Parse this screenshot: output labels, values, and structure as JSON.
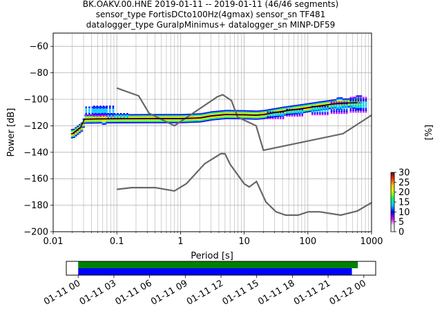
{
  "title_lines": [
    "BK.OAKV.00.HNE   2019-01-11 -- 2019-01-11  (46/46 segments)",
    "sensor_type FortisDCto100Hz(4gmax) sensor_sn TF481",
    "datalogger_type GuralpMinimus+ datalogger_sn MINP-DF59"
  ],
  "chart_data": [
    {
      "type": "heatmap",
      "xlabel": "Period [s]",
      "ylabel": "Power [dB]",
      "xscale": "log",
      "xlim": [
        0.01,
        1000
      ],
      "ylim": [
        -200,
        -50
      ],
      "grid": true,
      "xticks": [
        {
          "v": 0.01,
          "label": "0.01"
        },
        {
          "v": 0.1,
          "label": "0.1"
        },
        {
          "v": 1,
          "label": "1"
        },
        {
          "v": 10,
          "label": "10"
        },
        {
          "v": 100,
          "label": "100"
        },
        {
          "v": 1000,
          "label": "1000"
        }
      ],
      "yticks": [
        {
          "v": -60,
          "label": "−60"
        },
        {
          "v": -80,
          "label": "−80"
        },
        {
          "v": -100,
          "label": "−100"
        },
        {
          "v": -120,
          "label": "−120"
        },
        {
          "v": -140,
          "label": "−140"
        },
        {
          "v": -160,
          "label": "−160"
        },
        {
          "v": -180,
          "label": "−180"
        },
        {
          "v": -200,
          "label": "−200"
        }
      ],
      "noise_models": [
        {
          "name": "NHNM",
          "color": "#666666",
          "points": [
            [
              0.1,
              -91.5
            ],
            [
              0.22,
              -97.4
            ],
            [
              0.32,
              -110.5
            ],
            [
              0.8,
              -120
            ],
            [
              3.8,
              -98
            ],
            [
              4.6,
              -96.5
            ],
            [
              6.3,
              -101
            ],
            [
              7.9,
              -113.5
            ],
            [
              15.4,
              -120
            ],
            [
              20,
              -138.5
            ],
            [
              354.8,
              -126
            ],
            [
              1000,
              -112
            ]
          ]
        },
        {
          "name": "NLNM",
          "color": "#666666",
          "points": [
            [
              0.1,
              -168
            ],
            [
              0.17,
              -166.7
            ],
            [
              0.4,
              -166.7
            ],
            [
              0.8,
              -169.2
            ],
            [
              1.24,
              -163.7
            ],
            [
              2.4,
              -148.6
            ],
            [
              4.3,
              -141.1
            ],
            [
              5,
              -141.1
            ],
            [
              6,
              -149
            ],
            [
              10,
              -163.8
            ],
            [
              12,
              -166.2
            ],
            [
              15.6,
              -162.1
            ],
            [
              21.9,
              -177.5
            ],
            [
              31.6,
              -185
            ],
            [
              45,
              -187.5
            ],
            [
              70,
              -187.5
            ],
            [
              101,
              -185
            ],
            [
              154,
              -185
            ],
            [
              328,
              -187.5
            ],
            [
              600,
              -184.4
            ],
            [
              1000,
              -178
            ]
          ]
        }
      ],
      "median": [
        [
          0.02,
          -126
        ],
        [
          0.027,
          -121
        ],
        [
          0.031,
          -115
        ],
        [
          0.05,
          -114.8
        ],
        [
          0.1,
          -114.7
        ],
        [
          0.3,
          -114.6
        ],
        [
          1,
          -114.6
        ],
        [
          2,
          -114
        ],
        [
          3,
          -112.5
        ],
        [
          5,
          -111.5
        ],
        [
          10,
          -111.7
        ],
        [
          15,
          -112
        ],
        [
          20,
          -111.5
        ],
        [
          40,
          -109
        ],
        [
          80,
          -107
        ],
        [
          150,
          -105
        ],
        [
          300,
          -103
        ],
        [
          600,
          -102.5
        ]
      ],
      "psd_bands": [
        {
          "p": 0.045,
          "lo": -111.5,
          "hi": -104.5
        },
        {
          "p": 0.06,
          "lo": -112,
          "hi": -104
        },
        {
          "p": 0.1,
          "lo": -114,
          "hi": -110
        },
        {
          "p": 30,
          "lo": -114,
          "hi": -109
        },
        {
          "p": 60,
          "lo": -112,
          "hi": -106
        },
        {
          "p": 150,
          "lo": -111,
          "hi": -104
        },
        {
          "p": 300,
          "lo": -110,
          "hi": -101
        },
        {
          "p": 600,
          "lo": -109,
          "hi": -98
        }
      ]
    },
    {
      "type": "colorbar",
      "label": "[%]",
      "range": [
        0,
        30
      ],
      "ticks": [
        {
          "v": 0,
          "label": "0"
        },
        {
          "v": 5,
          "label": "5"
        },
        {
          "v": 10,
          "label": "10"
        },
        {
          "v": 15,
          "label": "15"
        },
        {
          "v": 20,
          "label": "20"
        },
        {
          "v": 25,
          "label": "25"
        },
        {
          "v": 30,
          "label": "30"
        }
      ],
      "colors": [
        "#ffffff",
        "#e6e6e6",
        "#cc00ff",
        "#0000ff",
        "#00ccff",
        "#00ff66",
        "#ccff00",
        "#ffcc00",
        "#ff3300",
        "#660000"
      ]
    },
    {
      "type": "timeline",
      "xlim_hours": [
        -1,
        25
      ],
      "segments": [
        {
          "name": "data",
          "color": "#008000",
          "start_h": 0,
          "end_h": 23.5
        },
        {
          "name": "used",
          "color": "#0000ff",
          "start_h": 0,
          "end_h": 23
        }
      ],
      "ticks": [
        {
          "h": 0,
          "label": "01-11 00"
        },
        {
          "h": 3,
          "label": "01-11 03"
        },
        {
          "h": 6,
          "label": "01-11 06"
        },
        {
          "h": 9,
          "label": "01-11 09"
        },
        {
          "h": 12,
          "label": "01-11 12"
        },
        {
          "h": 15,
          "label": "01-11 15"
        },
        {
          "h": 18,
          "label": "01-11 18"
        },
        {
          "h": 21,
          "label": "01-11 21"
        },
        {
          "h": 24,
          "label": "01-12 00"
        }
      ]
    }
  ]
}
